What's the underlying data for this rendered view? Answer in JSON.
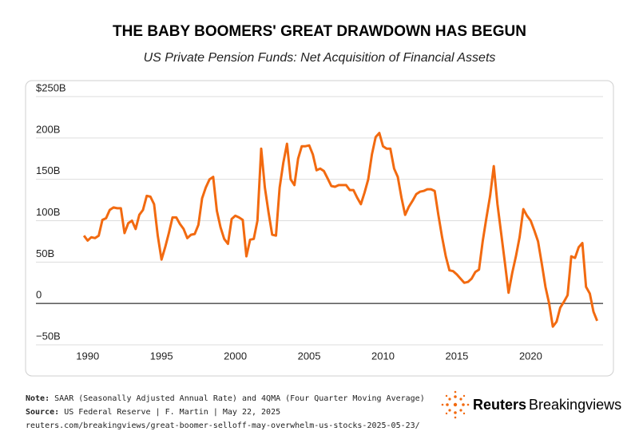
{
  "chart_data": {
    "type": "line",
    "title": "THE BABY BOOMERS' GREAT DRAWDOWN HAS BEGUN",
    "subtitle": "US Private Pension Funds: Net Acquisition of Financial Assets",
    "x": [
      1989.75,
      1990,
      1990.25,
      1990.5,
      1990.75,
      1991,
      1991.25,
      1991.5,
      1991.75,
      1992,
      1992.25,
      1992.5,
      1992.75,
      1993,
      1993.25,
      1993.5,
      1993.75,
      1994,
      1994.25,
      1994.5,
      1994.75,
      1995,
      1995.25,
      1995.5,
      1995.75,
      1996,
      1996.25,
      1996.5,
      1996.75,
      1997,
      1997.25,
      1997.5,
      1997.75,
      1998,
      1998.25,
      1998.5,
      1998.75,
      1999,
      1999.25,
      1999.5,
      1999.75,
      2000,
      2000.25,
      2000.5,
      2000.75,
      2001,
      2001.25,
      2001.5,
      2001.75,
      2002,
      2002.25,
      2002.5,
      2002.75,
      2003,
      2003.25,
      2003.5,
      2003.75,
      2004,
      2004.25,
      2004.5,
      2004.75,
      2005,
      2005.25,
      2005.5,
      2005.75,
      2006,
      2006.25,
      2006.5,
      2006.75,
      2007,
      2007.25,
      2007.5,
      2007.75,
      2008,
      2008.25,
      2008.5,
      2008.75,
      2009,
      2009.25,
      2009.5,
      2009.75,
      2010,
      2010.25,
      2010.5,
      2010.75,
      2011,
      2011.25,
      2011.5,
      2011.75,
      2012,
      2012.25,
      2012.5,
      2012.75,
      2013,
      2013.25,
      2013.5,
      2013.75,
      2014,
      2014.25,
      2014.5,
      2014.75,
      2015,
      2015.25,
      2015.5,
      2015.75,
      2016,
      2016.25,
      2016.5,
      2016.75,
      2017,
      2017.25,
      2017.5,
      2017.75,
      2018,
      2018.25,
      2018.5,
      2018.75,
      2019,
      2019.25,
      2019.5,
      2019.75,
      2020,
      2020.25,
      2020.5,
      2020.75,
      2021,
      2021.25,
      2021.5,
      2021.75,
      2022,
      2022.25,
      2022.5,
      2022.75,
      2023,
      2023.25,
      2023.5,
      2023.75,
      2024,
      2024.25,
      2024.5
    ],
    "series": [
      {
        "name": "Net acquisition of financial assets",
        "color": "#f26a10",
        "values": [
          82,
          76,
          80,
          79,
          82,
          101,
          103,
          113,
          116,
          115,
          115,
          85,
          97,
          100,
          90,
          107,
          113,
          130,
          129,
          120,
          82,
          53,
          68,
          85,
          104,
          104,
          96,
          90,
          79,
          83,
          84,
          95,
          127,
          140,
          150,
          153,
          112,
          92,
          78,
          72,
          102,
          106,
          104,
          101,
          57,
          77,
          78,
          100,
          187,
          140,
          110,
          83,
          82,
          140,
          170,
          193,
          150,
          143,
          175,
          190,
          190,
          191,
          180,
          161,
          163,
          160,
          151,
          142,
          141,
          143,
          143,
          143,
          137,
          137,
          128,
          120,
          134,
          150,
          180,
          201,
          206,
          190,
          187,
          187,
          163,
          153,
          128,
          107,
          117,
          124,
          132,
          135,
          136,
          138,
          138,
          136,
          107,
          80,
          57,
          40,
          39,
          35,
          30,
          25,
          26,
          30,
          38,
          41,
          75,
          103,
          130,
          166,
          120,
          85,
          50,
          13,
          37,
          57,
          80,
          114,
          106,
          100,
          88,
          75,
          48,
          20,
          0,
          -28,
          -22,
          -5,
          2,
          10,
          57,
          55,
          68,
          73,
          20,
          12,
          -10,
          -21
        ]
      }
    ],
    "xlim": [
      1986.5,
      2024.9
    ],
    "xticks": [
      1990,
      1995,
      2000,
      2005,
      2010,
      2015,
      2020
    ],
    "ylim": [
      -50,
      250
    ],
    "yticks": [
      {
        "value": -50,
        "label": "−50B"
      },
      0,
      {
        "value": 50,
        "label": "50B"
      },
      {
        "value": 100,
        "label": "100B"
      },
      {
        "value": 150,
        "label": "150B"
      },
      {
        "value": 200,
        "label": "200B"
      },
      {
        "value": 250,
        "label": "$250B"
      }
    ],
    "grid": true,
    "note_label": "Note:",
    "note_text": "SAAR (Seasonally Adjusted Annual Rate) and 4QMA (Four Quarter Moving Average)",
    "source_label": "Source:",
    "source_text": "US Federal Reserve | F. Martin | May 22, 2025",
    "url": "reuters.com/breakingviews/great-boomer-selloff-may-overwhelm-us-stocks-2025-05-23/",
    "logo_brand": "Reuters",
    "logo_product": "Breakingviews"
  }
}
